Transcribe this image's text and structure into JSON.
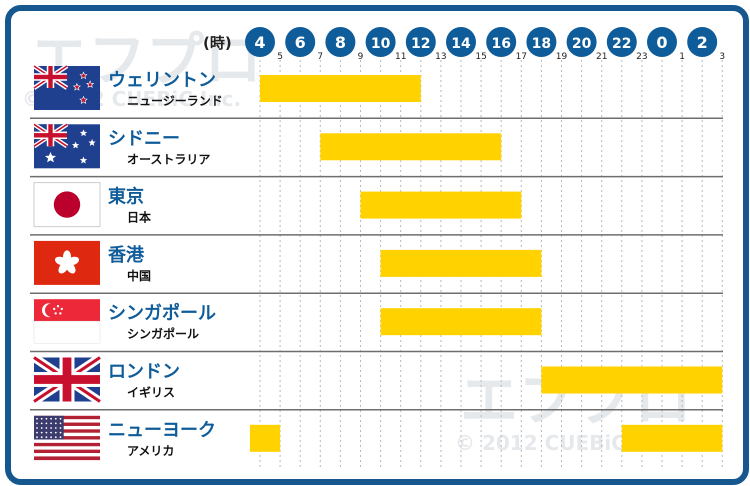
{
  "chart_data": {
    "type": "bar",
    "title": "",
    "xlabel": "",
    "ylabel": "",
    "x_unit_label": "(時)",
    "x_range": [
      4,
      27
    ],
    "x_major_ticks": [
      {
        "value": 4,
        "label": "4"
      },
      {
        "value": 6,
        "label": "6"
      },
      {
        "value": 8,
        "label": "8"
      },
      {
        "value": 10,
        "label": "10"
      },
      {
        "value": 12,
        "label": "12"
      },
      {
        "value": 14,
        "label": "14"
      },
      {
        "value": 16,
        "label": "16"
      },
      {
        "value": 18,
        "label": "18"
      },
      {
        "value": 20,
        "label": "20"
      },
      {
        "value": 22,
        "label": "22"
      },
      {
        "value": 24,
        "label": "0"
      },
      {
        "value": 26,
        "label": "2"
      }
    ],
    "x_minor_ticks": [
      {
        "value": 5,
        "label": "5"
      },
      {
        "value": 7,
        "label": "7"
      },
      {
        "value": 9,
        "label": "9"
      },
      {
        "value": 11,
        "label": "11"
      },
      {
        "value": 13,
        "label": "13"
      },
      {
        "value": 15,
        "label": "15"
      },
      {
        "value": 17,
        "label": "17"
      },
      {
        "value": 19,
        "label": "19"
      },
      {
        "value": 21,
        "label": "21"
      },
      {
        "value": 23,
        "label": "23"
      },
      {
        "value": 25,
        "label": "1"
      },
      {
        "value": 27,
        "label": "3"
      }
    ],
    "grid": true,
    "rows": [
      {
        "name": "ウェリントン",
        "sub": "ニュージーランド",
        "flag": "new-zealand",
        "sessions": [
          [
            4,
            12
          ]
        ]
      },
      {
        "name": "シドニー",
        "sub": "オーストラリア",
        "flag": "australia",
        "sessions": [
          [
            7,
            16
          ]
        ]
      },
      {
        "name": "東京",
        "sub": "日本",
        "flag": "japan",
        "sessions": [
          [
            9,
            17
          ]
        ]
      },
      {
        "name": "香港",
        "sub": "中国",
        "flag": "hong-kong",
        "sessions": [
          [
            10,
            18
          ]
        ]
      },
      {
        "name": "シンガポール",
        "sub": "シンガポール",
        "flag": "singapore",
        "sessions": [
          [
            10,
            18
          ]
        ]
      },
      {
        "name": "ロンドン",
        "sub": "イギリス",
        "flag": "united-kingdom",
        "sessions": [
          [
            18,
            27
          ]
        ]
      },
      {
        "name": "ニューヨーク",
        "sub": "アメリカ",
        "flag": "united-states",
        "sessions": [
          [
            3.5,
            5
          ],
          [
            22,
            27
          ]
        ]
      }
    ]
  },
  "watermark": {
    "logo_text": "エフプロ",
    "copyright": "© 2012 CUEBiC Inc."
  },
  "colors": {
    "frame": "#16578f",
    "tick_circle": "#0f5c9a",
    "bar": "#ffd200",
    "city_name": "#0f5c9a",
    "divider": "#6e6e6e",
    "grid": "#b8b8b8"
  }
}
